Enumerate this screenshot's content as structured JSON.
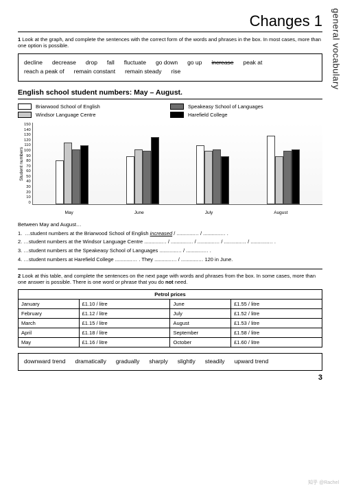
{
  "sideTab": "general vocabulary",
  "title": "Changes 1",
  "instruction1": "1 Look at the graph, and complete the sentences with the correct form of the words and phrases in the box. In most cases, more than one option is possible.",
  "wordBox1": [
    "decline",
    "decrease",
    "drop",
    "fall",
    "fluctuate",
    "go down",
    "go up",
    "increase",
    "peak at",
    "reach a peak of",
    "remain constant",
    "remain steady",
    "rise"
  ],
  "strikeWord": "increase",
  "chartTitle": "English school student numbers: May – August.",
  "legend": [
    {
      "label": "Briarwood School of English",
      "color": "#ffffff"
    },
    {
      "label": "Speakeasy School of Languages",
      "color": "#6e6e6e"
    },
    {
      "label": "Windsor Language Centre",
      "color": "#c8c8c8"
    },
    {
      "label": "Harefield College",
      "color": "#000000"
    }
  ],
  "chart": {
    "type": "bar",
    "ylabel": "Student numbers",
    "ymax": 150,
    "ystep": 10,
    "categories": [
      "May",
      "June",
      "July",
      "August"
    ],
    "series_colors": [
      "#ffffff",
      "#c8c8c8",
      "#6e6e6e",
      "#000000"
    ],
    "values": [
      [
        80,
        112,
        100,
        108
      ],
      [
        88,
        100,
        98,
        122
      ],
      [
        108,
        98,
        100,
        88
      ],
      [
        125,
        88,
        98,
        100
      ]
    ]
  },
  "between": "Between May and August…",
  "q1": "1.  …student numbers at the Briarwood School of English increased / ............… / ............… .",
  "q1_italic": "increased",
  "q2": "2.  …student numbers at the Windsor Language Centre ............… / ............… / ............… / ............… / ............… .",
  "q3": "3.  …student numbers at the Speakeasy School of Languages ............… / ............… .",
  "q4": "4.  …student numbers at Harefield College ............… . They ............… / ............… 120 in June.",
  "instruction2": "2 Look at this table, and complete the sentences on the next page with words and phrases from the box. In some cases, more than one answer is possible. There is one word or phrase that you do not need.",
  "petrolHeader": "Petrol prices",
  "petrol": [
    [
      "January",
      "£1.10 / litre",
      "June",
      "£1.55 / litre"
    ],
    [
      "February",
      "£1.12 / litre",
      "July",
      "£1.52 / litre"
    ],
    [
      "March",
      "£1.15 / litre",
      "August",
      "£1.53 / litre"
    ],
    [
      "April",
      "£1.18 / litre",
      "September",
      "£1.58 / litre"
    ],
    [
      "May",
      "£1.16 / litre",
      "October",
      "£1.60 / litre"
    ]
  ],
  "wordBox2": [
    "downward trend",
    "dramatically",
    "gradually",
    "sharply",
    "slightly",
    "steadily",
    "upward trend"
  ],
  "pageNumber": "3",
  "watermark": "知乎 @Rachel"
}
